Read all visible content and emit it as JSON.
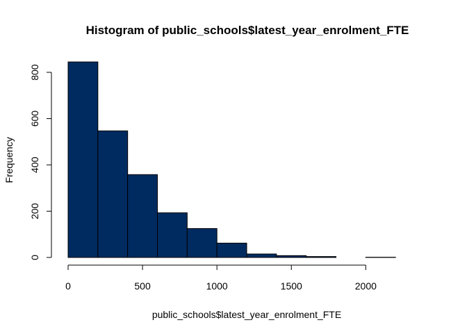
{
  "chart_data": {
    "type": "bar",
    "title": "Histogram of public_schools$latest_year_enrolment_FTE",
    "xlabel": "public_schools$latest_year_enrolment_FTE",
    "ylabel": "Frequency",
    "bin_edges": [
      0,
      200,
      400,
      600,
      800,
      1000,
      1200,
      1400,
      1600,
      1800,
      2000,
      2200,
      2400
    ],
    "values": [
      845,
      547,
      358,
      193,
      125,
      62,
      15,
      8,
      4,
      0,
      1,
      0
    ],
    "xlim": [
      0,
      2400
    ],
    "ylim": [
      0,
      845
    ],
    "x_ticks": [
      0,
      500,
      1000,
      1500,
      2000
    ],
    "y_ticks": [
      0,
      200,
      400,
      600,
      800
    ],
    "bar_color": "#002B60",
    "grid": false,
    "legend": "none"
  }
}
